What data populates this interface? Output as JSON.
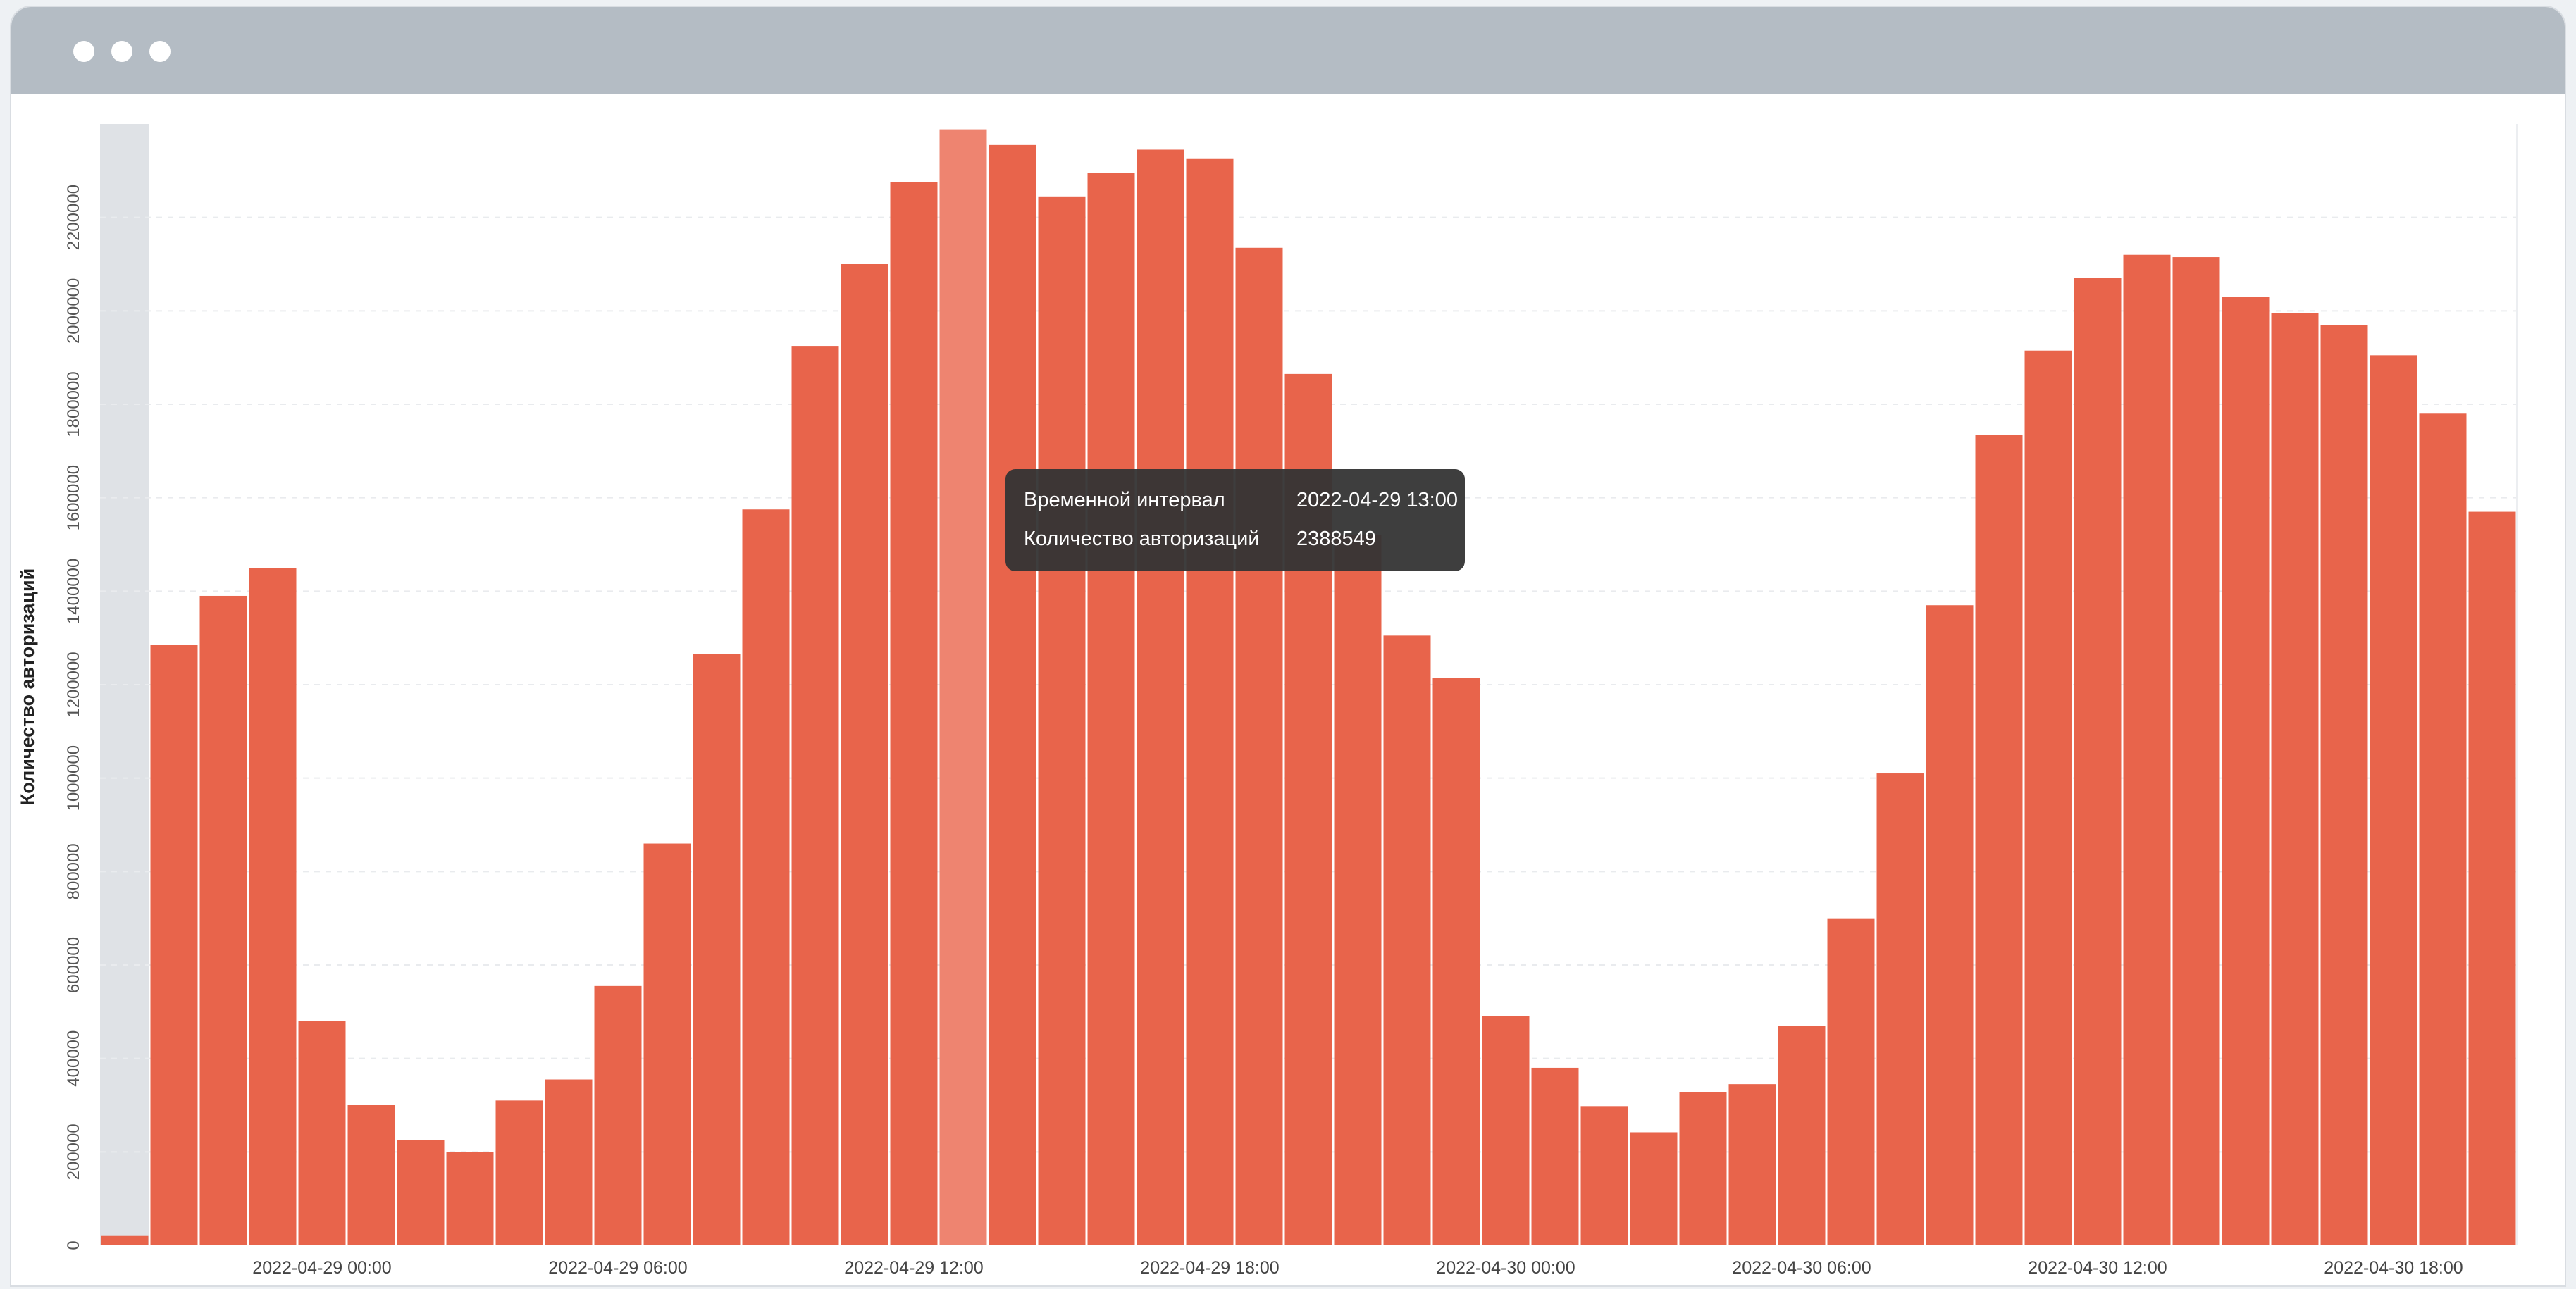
{
  "window": {
    "buttons": [
      "close",
      "minimize",
      "maximize"
    ]
  },
  "colors": {
    "bar": "#e8644b",
    "bar_highlight": "#ee8470",
    "hover_band": "#dfe2e6",
    "titlebar": "#b4bcc4",
    "tooltip_bg": "#3a3a3a"
  },
  "chart_data": {
    "type": "bar",
    "ylabel": "Количество авторизаций",
    "xlabel": "",
    "ylim": [
      0,
      2400000
    ],
    "y_ticks": [
      0,
      200000,
      400000,
      600000,
      800000,
      1000000,
      1200000,
      1400000,
      1600000,
      1800000,
      2000000,
      2200000
    ],
    "x_tick_labels": [
      "2022-04-29 00:00",
      "2022-04-29 06:00",
      "2022-04-29 12:00",
      "2022-04-29 18:00",
      "2022-04-30 00:00",
      "2022-04-30 06:00",
      "2022-04-30 12:00",
      "2022-04-30 18:00"
    ],
    "categories": [
      "2022-04-28 20:00",
      "2022-04-28 21:00",
      "2022-04-28 22:00",
      "2022-04-28 23:00",
      "2022-04-29 00:00",
      "2022-04-29 01:00",
      "2022-04-29 02:00",
      "2022-04-29 03:00",
      "2022-04-29 04:00",
      "2022-04-29 05:00",
      "2022-04-29 06:00",
      "2022-04-29 07:00",
      "2022-04-29 08:00",
      "2022-04-29 09:00",
      "2022-04-29 10:00",
      "2022-04-29 11:00",
      "2022-04-29 12:00",
      "2022-04-29 13:00",
      "2022-04-29 14:00",
      "2022-04-29 15:00",
      "2022-04-29 16:00",
      "2022-04-29 17:00",
      "2022-04-29 18:00",
      "2022-04-29 19:00",
      "2022-04-29 20:00",
      "2022-04-29 21:00",
      "2022-04-29 22:00",
      "2022-04-29 23:00",
      "2022-04-30 00:00",
      "2022-04-30 01:00",
      "2022-04-30 02:00",
      "2022-04-30 03:00",
      "2022-04-30 04:00",
      "2022-04-30 05:00",
      "2022-04-30 06:00",
      "2022-04-30 07:00",
      "2022-04-30 08:00",
      "2022-04-30 09:00",
      "2022-04-30 10:00",
      "2022-04-30 11:00",
      "2022-04-30 12:00",
      "2022-04-30 13:00",
      "2022-04-30 14:00",
      "2022-04-30 15:00",
      "2022-04-30 16:00",
      "2022-04-30 17:00",
      "2022-04-30 18:00",
      "2022-04-30 19:00",
      "2022-04-30 20:00"
    ],
    "values": [
      20000,
      1285000,
      1390000,
      1450000,
      480000,
      300000,
      225000,
      200000,
      310000,
      355000,
      555000,
      860000,
      1265000,
      1575000,
      1925000,
      2100000,
      2275000,
      2388549,
      2355000,
      2245000,
      2295000,
      2345000,
      2325000,
      2135000,
      1865000,
      1520000,
      1305000,
      1215000,
      490000,
      380000,
      298000,
      242000,
      328000,
      345000,
      470000,
      700000,
      1010000,
      1370000,
      1735000,
      1915000,
      2070000,
      2120000,
      2115000,
      2030000,
      1995000,
      1970000,
      1905000,
      1780000,
      1570000
    ],
    "highlighted_index": 17,
    "hover_band_index": 0,
    "grid": true,
    "tooltip": {
      "label_time": "Временной интервал",
      "value_time": "2022-04-29 13:00",
      "label_count": "Количество авторизаций",
      "value_count": "2388549"
    }
  }
}
